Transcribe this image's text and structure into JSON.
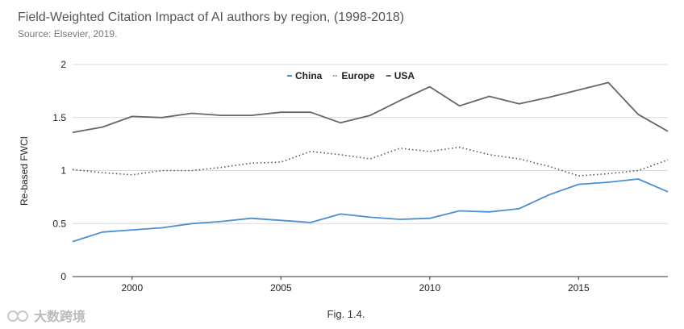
{
  "chart_data": {
    "type": "line",
    "title": "Field-Weighted Citation Impact of AI authors by region, (1998-2018)",
    "subtitle": "Source: Elsevier, 2019.",
    "xlabel": "",
    "ylabel": "Re-based FWCI",
    "xlim": [
      1998,
      2018
    ],
    "ylim": [
      0,
      2
    ],
    "x_ticks": [
      "2000",
      "2005",
      "2010",
      "2015"
    ],
    "y_ticks": [
      "0",
      "0.5",
      "1",
      "1.5",
      "2"
    ],
    "legend_position": "top-center",
    "x": [
      1998,
      1999,
      2000,
      2001,
      2002,
      2003,
      2004,
      2005,
      2006,
      2007,
      2008,
      2009,
      2010,
      2011,
      2012,
      2013,
      2014,
      2015,
      2016,
      2017,
      2018
    ],
    "series": [
      {
        "name": "China",
        "color": "#4a8fd4",
        "style": "solid",
        "values": [
          0.33,
          0.42,
          0.44,
          0.46,
          0.5,
          0.52,
          0.55,
          0.53,
          0.51,
          0.59,
          0.56,
          0.54,
          0.55,
          0.62,
          0.61,
          0.64,
          0.77,
          0.87,
          0.89,
          0.92,
          0.8
        ]
      },
      {
        "name": "Europe",
        "color": "#555555",
        "style": "dotted",
        "values": [
          1.01,
          0.98,
          0.96,
          1.0,
          1.0,
          1.03,
          1.07,
          1.08,
          1.18,
          1.15,
          1.11,
          1.21,
          1.18,
          1.22,
          1.15,
          1.11,
          1.04,
          0.95,
          0.97,
          1.0,
          1.1
        ]
      },
      {
        "name": "USA",
        "color": "#666666",
        "style": "solid",
        "values": [
          1.36,
          1.41,
          1.51,
          1.5,
          1.54,
          1.52,
          1.52,
          1.55,
          1.55,
          1.45,
          1.52,
          1.66,
          1.79,
          1.61,
          1.7,
          1.63,
          1.69,
          1.76,
          1.83,
          1.53,
          1.37
        ]
      }
    ]
  },
  "caption": "Fig. 1.4.",
  "watermark": "大数跨境"
}
